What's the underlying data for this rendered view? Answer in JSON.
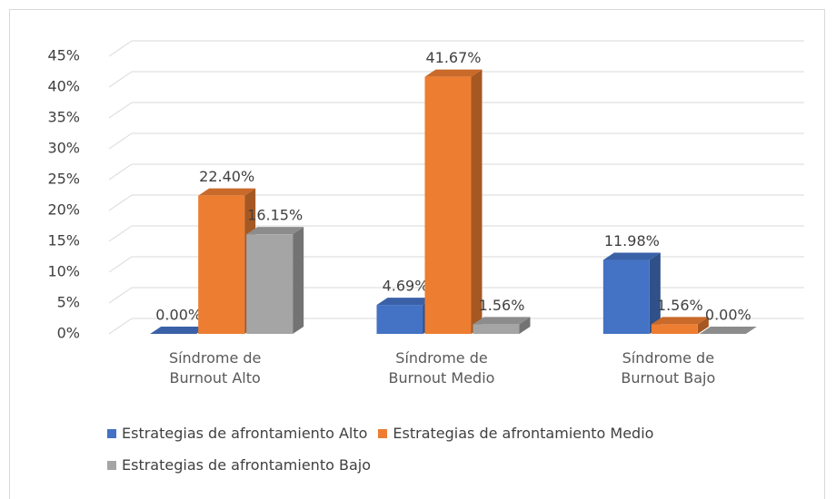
{
  "chart_data": {
    "type": "bar3d",
    "categories": [
      "Síndrome de Burnout Alto",
      "Síndrome de Burnout Medio",
      "Síndrome de Burnout Bajo"
    ],
    "series": [
      {
        "name": "Estrategias de afrontamiento Alto",
        "color": "#4472c4",
        "values": [
          0,
          4.69,
          11.98
        ],
        "value_labels": [
          "0.00%",
          "4.69%",
          "11.98%"
        ]
      },
      {
        "name": "Estrategias de afrontamiento Medio",
        "color": "#ed7d31",
        "values": [
          22.4,
          41.67,
          1.56
        ],
        "value_labels": [
          "22.40%",
          "41.67%",
          "1.56%"
        ]
      },
      {
        "name": "Estrategias de afrontamiento Bajo",
        "color": "#a5a5a5",
        "values": [
          16.15,
          1.56,
          0
        ],
        "value_labels": [
          "16.15%",
          "1.56%",
          "0.00%"
        ]
      }
    ],
    "ylim": [
      0,
      45
    ],
    "yticks": [
      {
        "value": 0,
        "label": "0%"
      },
      {
        "value": 5,
        "label": "5%"
      },
      {
        "value": 10,
        "label": "10%"
      },
      {
        "value": 15,
        "label": "15%"
      },
      {
        "value": 20,
        "label": "20%"
      },
      {
        "value": 25,
        "label": "25%"
      },
      {
        "value": 30,
        "label": "30%"
      },
      {
        "value": 35,
        "label": "35%"
      },
      {
        "value": 40,
        "label": "40%"
      },
      {
        "value": 45,
        "label": "45%"
      }
    ],
    "grid": true
  }
}
